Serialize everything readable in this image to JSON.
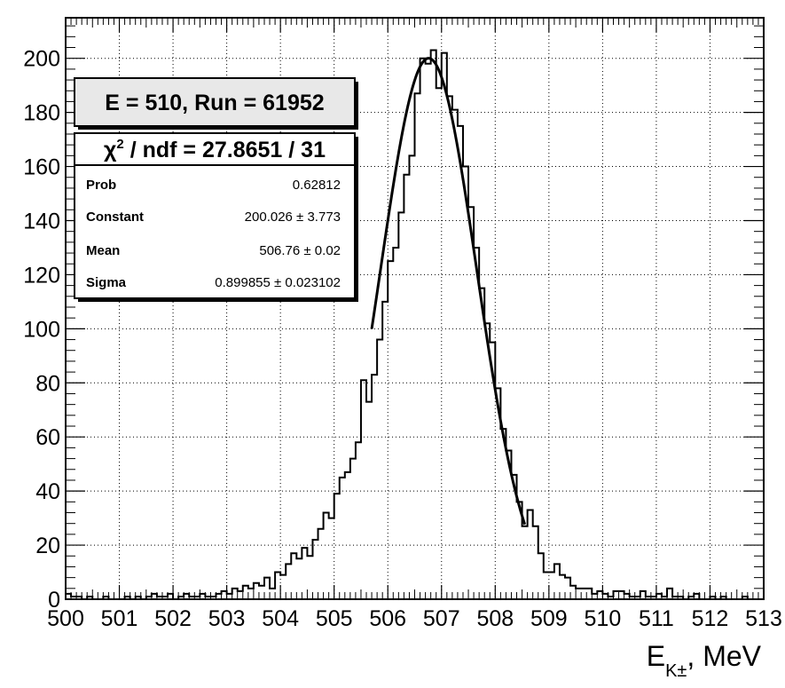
{
  "chart_data": {
    "type": "histogram",
    "xlabel": {
      "main": "E",
      "sub": "K±",
      "rest": ", MeV"
    },
    "xlim": [
      500,
      513
    ],
    "ylim": [
      0,
      215
    ],
    "xticks": [
      500,
      501,
      502,
      503,
      504,
      505,
      506,
      507,
      508,
      509,
      510,
      511,
      512,
      513
    ],
    "yticks": [
      0,
      20,
      40,
      60,
      80,
      100,
      120,
      140,
      160,
      180,
      200
    ],
    "grid": true,
    "bin_width": 0.1,
    "bins": [
      {
        "x": 500.0,
        "y": 2
      },
      {
        "x": 500.1,
        "y": 1
      },
      {
        "x": 500.2,
        "y": 1
      },
      {
        "x": 500.3,
        "y": 0
      },
      {
        "x": 500.4,
        "y": 1
      },
      {
        "x": 500.5,
        "y": 0
      },
      {
        "x": 500.6,
        "y": 0
      },
      {
        "x": 500.7,
        "y": 1
      },
      {
        "x": 500.8,
        "y": 0
      },
      {
        "x": 500.9,
        "y": 0
      },
      {
        "x": 501.0,
        "y": 0
      },
      {
        "x": 501.1,
        "y": 1
      },
      {
        "x": 501.2,
        "y": 0
      },
      {
        "x": 501.3,
        "y": 1
      },
      {
        "x": 501.4,
        "y": 0
      },
      {
        "x": 501.5,
        "y": 1
      },
      {
        "x": 501.6,
        "y": 2
      },
      {
        "x": 501.7,
        "y": 1
      },
      {
        "x": 501.8,
        "y": 1
      },
      {
        "x": 501.9,
        "y": 2
      },
      {
        "x": 502.0,
        "y": 0
      },
      {
        "x": 502.1,
        "y": 1
      },
      {
        "x": 502.2,
        "y": 2
      },
      {
        "x": 502.3,
        "y": 1
      },
      {
        "x": 502.4,
        "y": 1
      },
      {
        "x": 502.5,
        "y": 2
      },
      {
        "x": 502.6,
        "y": 1
      },
      {
        "x": 502.7,
        "y": 1
      },
      {
        "x": 502.8,
        "y": 2
      },
      {
        "x": 502.9,
        "y": 3
      },
      {
        "x": 503.0,
        "y": 2
      },
      {
        "x": 503.1,
        "y": 4
      },
      {
        "x": 503.2,
        "y": 3
      },
      {
        "x": 503.3,
        "y": 5
      },
      {
        "x": 503.4,
        "y": 4
      },
      {
        "x": 503.5,
        "y": 6
      },
      {
        "x": 503.6,
        "y": 5
      },
      {
        "x": 503.7,
        "y": 8
      },
      {
        "x": 503.8,
        "y": 4
      },
      {
        "x": 503.9,
        "y": 10
      },
      {
        "x": 504.0,
        "y": 9
      },
      {
        "x": 504.1,
        "y": 13
      },
      {
        "x": 504.2,
        "y": 17
      },
      {
        "x": 504.3,
        "y": 15
      },
      {
        "x": 504.4,
        "y": 19
      },
      {
        "x": 504.5,
        "y": 16
      },
      {
        "x": 504.6,
        "y": 22
      },
      {
        "x": 504.7,
        "y": 26
      },
      {
        "x": 504.8,
        "y": 32
      },
      {
        "x": 504.9,
        "y": 30
      },
      {
        "x": 505.0,
        "y": 39
      },
      {
        "x": 505.1,
        "y": 45
      },
      {
        "x": 505.2,
        "y": 47
      },
      {
        "x": 505.3,
        "y": 52
      },
      {
        "x": 505.4,
        "y": 58
      },
      {
        "x": 505.5,
        "y": 81
      },
      {
        "x": 505.6,
        "y": 73
      },
      {
        "x": 505.7,
        "y": 83
      },
      {
        "x": 505.8,
        "y": 96
      },
      {
        "x": 505.9,
        "y": 110
      },
      {
        "x": 506.0,
        "y": 125
      },
      {
        "x": 506.1,
        "y": 130
      },
      {
        "x": 506.2,
        "y": 143
      },
      {
        "x": 506.3,
        "y": 157
      },
      {
        "x": 506.4,
        "y": 164
      },
      {
        "x": 506.5,
        "y": 187
      },
      {
        "x": 506.6,
        "y": 200
      },
      {
        "x": 506.7,
        "y": 198
      },
      {
        "x": 506.8,
        "y": 203
      },
      {
        "x": 506.9,
        "y": 189
      },
      {
        "x": 507.0,
        "y": 202
      },
      {
        "x": 507.1,
        "y": 186
      },
      {
        "x": 507.2,
        "y": 181
      },
      {
        "x": 507.3,
        "y": 175
      },
      {
        "x": 507.4,
        "y": 160
      },
      {
        "x": 507.5,
        "y": 145
      },
      {
        "x": 507.6,
        "y": 130
      },
      {
        "x": 507.7,
        "y": 115
      },
      {
        "x": 507.8,
        "y": 102
      },
      {
        "x": 507.9,
        "y": 95
      },
      {
        "x": 508.0,
        "y": 78
      },
      {
        "x": 508.1,
        "y": 63
      },
      {
        "x": 508.2,
        "y": 55
      },
      {
        "x": 508.3,
        "y": 46
      },
      {
        "x": 508.4,
        "y": 36
      },
      {
        "x": 508.5,
        "y": 27
      },
      {
        "x": 508.6,
        "y": 33
      },
      {
        "x": 508.7,
        "y": 27
      },
      {
        "x": 508.8,
        "y": 17
      },
      {
        "x": 508.9,
        "y": 10
      },
      {
        "x": 509.0,
        "y": 10
      },
      {
        "x": 509.1,
        "y": 13
      },
      {
        "x": 509.2,
        "y": 9
      },
      {
        "x": 509.3,
        "y": 8
      },
      {
        "x": 509.4,
        "y": 5
      },
      {
        "x": 509.5,
        "y": 4
      },
      {
        "x": 509.6,
        "y": 4
      },
      {
        "x": 509.7,
        "y": 4
      },
      {
        "x": 509.8,
        "y": 2
      },
      {
        "x": 509.9,
        "y": 3
      },
      {
        "x": 510.0,
        "y": 2
      },
      {
        "x": 510.1,
        "y": 1
      },
      {
        "x": 510.2,
        "y": 3
      },
      {
        "x": 510.3,
        "y": 3
      },
      {
        "x": 510.4,
        "y": 2
      },
      {
        "x": 510.5,
        "y": 1
      },
      {
        "x": 510.6,
        "y": 1
      },
      {
        "x": 510.7,
        "y": 3
      },
      {
        "x": 510.8,
        "y": 1
      },
      {
        "x": 510.9,
        "y": 1
      },
      {
        "x": 511.0,
        "y": 2
      },
      {
        "x": 511.1,
        "y": 1
      },
      {
        "x": 511.2,
        "y": 4
      },
      {
        "x": 511.3,
        "y": 1
      },
      {
        "x": 511.4,
        "y": 1
      },
      {
        "x": 511.5,
        "y": 0
      },
      {
        "x": 511.6,
        "y": 1
      },
      {
        "x": 511.7,
        "y": 2
      },
      {
        "x": 511.8,
        "y": 0
      },
      {
        "x": 511.9,
        "y": 0
      },
      {
        "x": 512.0,
        "y": 1
      },
      {
        "x": 512.1,
        "y": 0
      },
      {
        "x": 512.2,
        "y": 1
      },
      {
        "x": 512.3,
        "y": 0
      },
      {
        "x": 512.4,
        "y": 0
      },
      {
        "x": 512.5,
        "y": 0
      },
      {
        "x": 512.6,
        "y": 1
      },
      {
        "x": 512.7,
        "y": 0
      },
      {
        "x": 512.8,
        "y": 0
      },
      {
        "x": 512.9,
        "y": 0
      }
    ],
    "fit": {
      "function": "gaus",
      "constant": 200.026,
      "mean": 506.76,
      "sigma": 0.899855,
      "range": [
        505.7,
        508.55
      ]
    }
  },
  "box": {
    "title": "E = 510, Run = 61952",
    "chi2_prefix": "χ",
    "chi2_sup": "2",
    "chi2_rest": " / ndf = 27.8651 / 31",
    "rows": [
      {
        "label": "Prob",
        "value": "0.62812"
      },
      {
        "label": "Constant",
        "value": "200.026 ± 3.773"
      },
      {
        "label": "Mean",
        "value": "506.76  ± 0.02"
      },
      {
        "label": "Sigma",
        "value": "0.899855 ± 0.023102"
      }
    ]
  }
}
